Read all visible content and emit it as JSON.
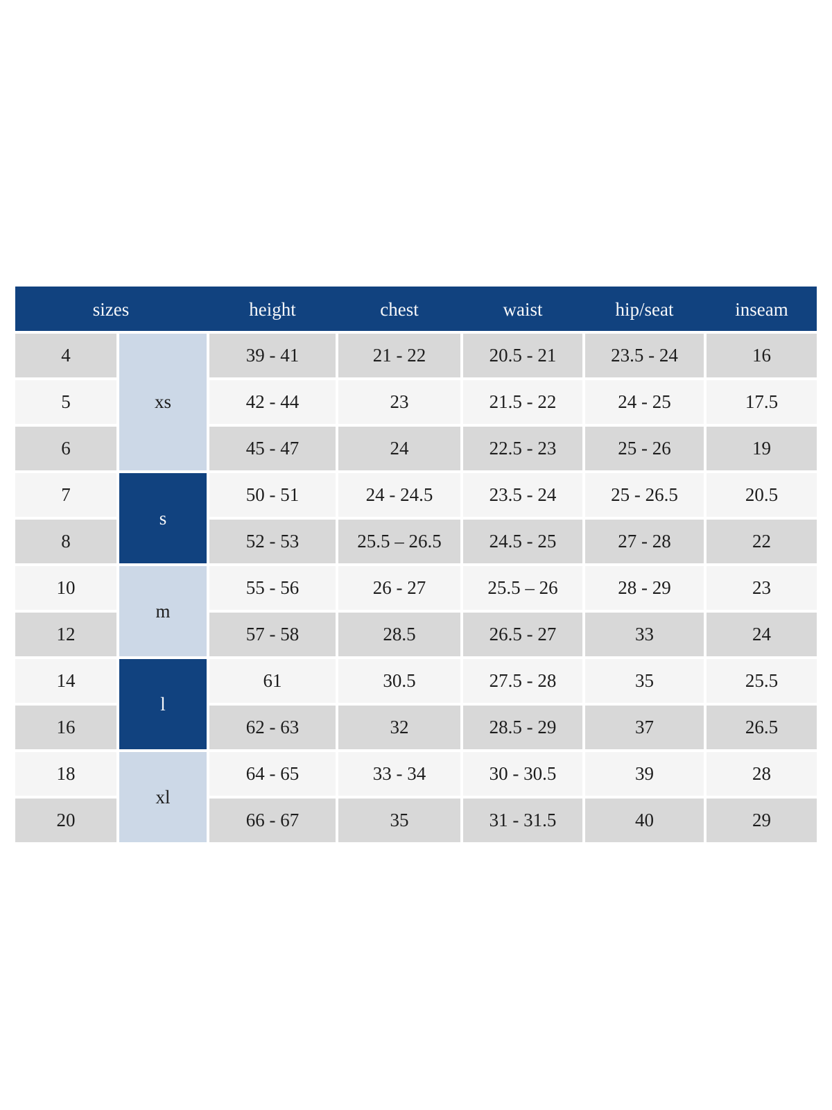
{
  "colors": {
    "navy": "#11427f",
    "lightblue": "#ccd8e7",
    "row-gray": "#d8d8d8",
    "row-light": "#f5f5f5",
    "header-text": "#f7f8fa",
    "cell-text": "#1d1d1d",
    "page-bg": "#ffffff"
  },
  "header": {
    "sizes": "sizes",
    "height": "height",
    "chest": "chest",
    "waist": "waist",
    "hip_seat": "hip/seat",
    "inseam": "inseam"
  },
  "groups": [
    {
      "label": "xs",
      "span": 3,
      "style": "light"
    },
    {
      "label": "s",
      "span": 2,
      "style": "dark"
    },
    {
      "label": "m",
      "span": 2,
      "style": "light"
    },
    {
      "label": "l",
      "span": 2,
      "style": "dark"
    },
    {
      "label": "xl",
      "span": 2,
      "style": "light"
    }
  ],
  "rows": [
    {
      "size": "4",
      "height": "39 - 41",
      "chest": "21 - 22",
      "waist": "20.5 - 21",
      "hip": "23.5 - 24",
      "inseam": "16"
    },
    {
      "size": "5",
      "height": "42 - 44",
      "chest": "23",
      "waist": "21.5 - 22",
      "hip": "24 - 25",
      "inseam": "17.5"
    },
    {
      "size": "6",
      "height": "45 - 47",
      "chest": "24",
      "waist": "22.5 - 23",
      "hip": "25 - 26",
      "inseam": "19"
    },
    {
      "size": "7",
      "height": "50 - 51",
      "chest": "24 - 24.5",
      "waist": "23.5 - 24",
      "hip": "25 - 26.5",
      "inseam": "20.5"
    },
    {
      "size": "8",
      "height": "52 - 53",
      "chest": "25.5 – 26.5",
      "waist": "24.5 - 25",
      "hip": "27 - 28",
      "inseam": "22"
    },
    {
      "size": "10",
      "height": "55 - 56",
      "chest": "26 - 27",
      "waist": "25.5 – 26",
      "hip": "28 - 29",
      "inseam": "23"
    },
    {
      "size": "12",
      "height": "57 - 58",
      "chest": "28.5",
      "waist": "26.5 - 27",
      "hip": "33",
      "inseam": "24"
    },
    {
      "size": "14",
      "height": "61",
      "chest": "30.5",
      "waist": "27.5 - 28",
      "hip": "35",
      "inseam": "25.5"
    },
    {
      "size": "16",
      "height": "62 - 63",
      "chest": "32",
      "waist": "28.5 - 29",
      "hip": "37",
      "inseam": "26.5"
    },
    {
      "size": "18",
      "height": "64 - 65",
      "chest": "33 - 34",
      "waist": "30 - 30.5",
      "hip": "39",
      "inseam": "28"
    },
    {
      "size": "20",
      "height": "66 - 67",
      "chest": "35",
      "waist": "31 - 31.5",
      "hip": "40",
      "inseam": "29"
    }
  ]
}
